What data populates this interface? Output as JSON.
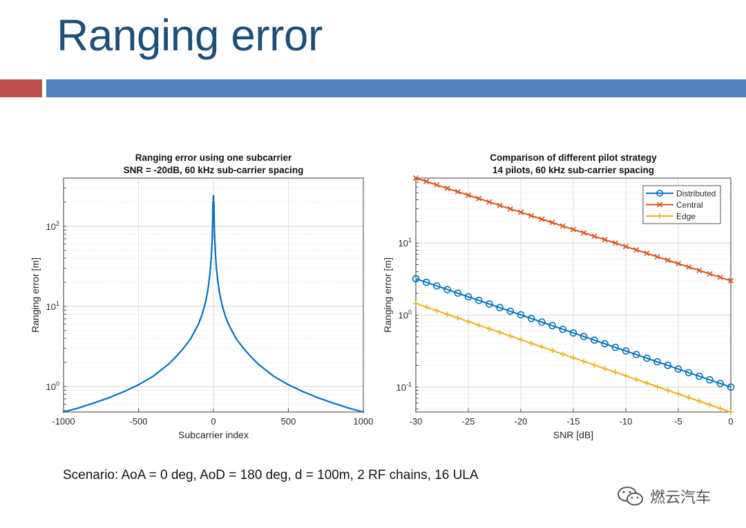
{
  "slide": {
    "title": "Ranging error",
    "scenario": "Scenario: AoA = 0 deg, AoD = 180 deg, d = 100m, 2 RF chains, 16 ULA",
    "watermark": "燃云汽车",
    "colors": {
      "title": "#1f4e79",
      "accent_red": "#c0504d",
      "accent_blue": "#4f81bd"
    }
  },
  "chart_data": [
    {
      "type": "scatter",
      "title": "Ranging error using one subcarrier",
      "subtitle": "SNR = -20dB, 60 kHz sub-carrier spacing",
      "xlabel": "Subcarrier index",
      "ylabel": "Ranging error [m]",
      "xlim": [
        -1000,
        1000
      ],
      "ylim": [
        0.48,
        400
      ],
      "yscale": "log",
      "grid": true,
      "xticks": [
        -1000,
        -500,
        0,
        500,
        1000
      ],
      "xtick_labels": [
        "-1000",
        "-500",
        "0",
        "500",
        "1000"
      ],
      "yticks": [
        1,
        10,
        100
      ],
      "ytick_labels": [
        {
          "base": "10",
          "exp": "0"
        },
        {
          "base": "10",
          "exp": "1"
        },
        {
          "base": "10",
          "exp": "2"
        }
      ],
      "series": [
        {
          "name": "Ranging error",
          "color": "#0072bd",
          "x": [
            -1000,
            -900,
            -800,
            -700,
            -600,
            -500,
            -400,
            -300,
            -250,
            -200,
            -150,
            -100,
            -80,
            -60,
            -50,
            -40,
            -30,
            -20,
            -15,
            -10,
            -8,
            -6,
            -4,
            -3,
            -2,
            -1,
            0,
            1,
            2,
            3,
            4,
            6,
            8,
            10,
            15,
            20,
            30,
            40,
            50,
            60,
            80,
            100,
            150,
            200,
            250,
            300,
            400,
            500,
            600,
            700,
            800,
            900,
            1000
          ],
          "y": [
            0.48,
            0.54,
            0.62,
            0.72,
            0.86,
            1.05,
            1.35,
            1.9,
            2.35,
            3.0,
            4.0,
            6.0,
            7.5,
            10.0,
            12.0,
            15.0,
            20.0,
            30.0,
            40.0,
            60.0,
            75.0,
            100.0,
            150.0,
            200.0,
            120.0,
            240.0,
            120.0,
            240.0,
            120.0,
            200.0,
            150.0,
            100.0,
            75.0,
            60.0,
            40.0,
            30.0,
            20.0,
            15.0,
            12.0,
            10.0,
            7.5,
            6.0,
            4.0,
            3.0,
            2.35,
            1.9,
            1.35,
            1.05,
            0.86,
            0.72,
            0.62,
            0.54,
            0.48
          ]
        }
      ]
    },
    {
      "type": "line",
      "title": "Comparison of different pilot strategy",
      "subtitle": "14 pilots, 60 kHz sub-carrier spacing",
      "xlabel": "SNR [dB]",
      "ylabel": "Ranging error [m]",
      "xlim": [
        -30,
        0
      ],
      "ylim": [
        0.045,
        80
      ],
      "yscale": "log",
      "grid": true,
      "legend_position": "top-right",
      "xticks": [
        -30,
        -25,
        -20,
        -15,
        -10,
        -5,
        0
      ],
      "xtick_labels": [
        "-30",
        "-25",
        "-20",
        "-15",
        "-10",
        "-5",
        "0"
      ],
      "yticks": [
        0.1,
        1,
        10
      ],
      "ytick_labels": [
        {
          "base": "10",
          "exp": "-1"
        },
        {
          "base": "10",
          "exp": "0"
        },
        {
          "base": "10",
          "exp": "1"
        }
      ],
      "x": [
        -30,
        -29,
        -28,
        -27,
        -26,
        -25,
        -24,
        -23,
        -22,
        -21,
        -20,
        -19,
        -18,
        -17,
        -16,
        -15,
        -14,
        -13,
        -12,
        -11,
        -10,
        -9,
        -8,
        -7,
        -6,
        -5,
        -4,
        -3,
        -2,
        -1,
        0
      ],
      "series": [
        {
          "name": "Distributed",
          "color": "#0072bd",
          "marker": "circle",
          "y_start": 3.2,
          "y_end": 0.1
        },
        {
          "name": "Central",
          "color": "#d95319",
          "marker": "x",
          "y_start": 80,
          "y_end": 3.0
        },
        {
          "name": "Edge",
          "color": "#edb120",
          "marker": "plus",
          "y_start": 1.45,
          "y_end": 0.045
        }
      ]
    }
  ]
}
